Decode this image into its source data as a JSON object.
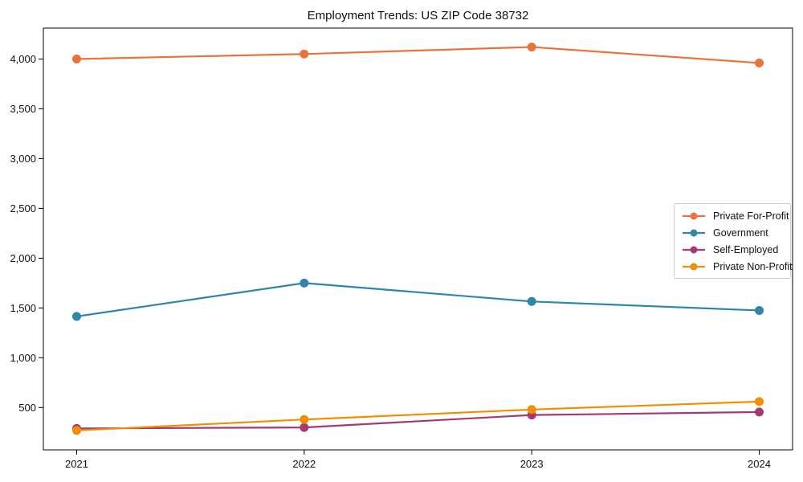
{
  "chart_data": {
    "type": "line",
    "title": "Employment Trends: US ZIP Code 38732",
    "x": [
      2021,
      2022,
      2023,
      2024
    ],
    "xtick_labels": [
      "2021",
      "2022",
      "2023",
      "2024"
    ],
    "series": [
      {
        "name": "Private For-Profit",
        "color": "#E8743B",
        "values": [
          4000,
          4050,
          4120,
          3960
        ]
      },
      {
        "name": "Government",
        "color": "#2E86AB",
        "values": [
          1415,
          1750,
          1565,
          1475
        ]
      },
      {
        "name": "Self-Employed",
        "color": "#A23B72",
        "values": [
          290,
          300,
          425,
          455
        ]
      },
      {
        "name": "Private Non-Profit",
        "color": "#F18F01",
        "values": [
          270,
          380,
          480,
          560
        ]
      }
    ],
    "yticks": [
      500,
      1000,
      1500,
      2000,
      2500,
      3000,
      3500,
      4000
    ],
    "ytick_labels": [
      "500",
      "1,000",
      "1,500",
      "2,000",
      "2,500",
      "3,000",
      "3,500",
      "4,000"
    ],
    "ylim": [
      75,
      4310
    ],
    "xlabel": "",
    "ylabel": "",
    "grid": false,
    "legend_position": "center right",
    "marker": "circle",
    "axis_color": "#000000",
    "background_color": "#ffffff"
  }
}
